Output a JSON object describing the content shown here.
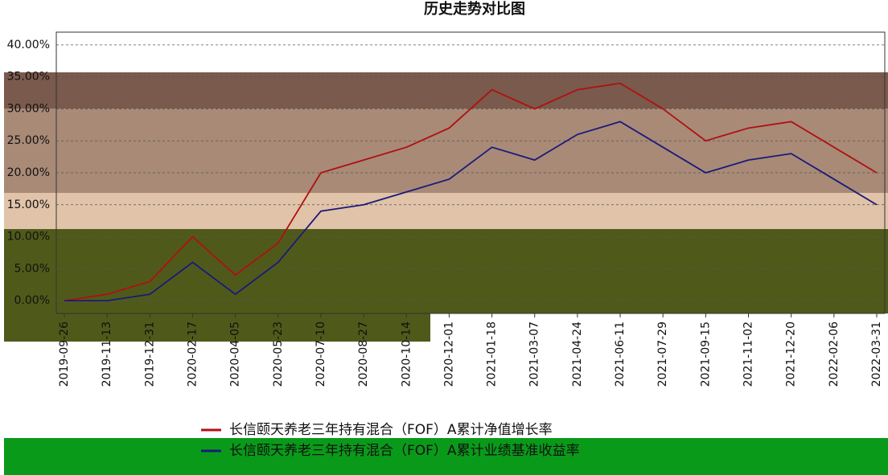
{
  "chart_data": {
    "type": "line",
    "title": "历史走势对比图",
    "categories": [
      "2019-09-26",
      "2019-11-13",
      "2019-12-31",
      "2020-02-17",
      "2020-04-05",
      "2020-05-23",
      "2020-07-10",
      "2020-08-27",
      "2020-10-14",
      "2020-12-01",
      "2021-01-18",
      "2021-03-07",
      "2021-04-24",
      "2021-06-11",
      "2021-07-29",
      "2021-09-15",
      "2021-11-02",
      "2021-12-20",
      "2022-02-06",
      "2022-03-31"
    ],
    "series": [
      {
        "name": "长信颐天养老三年持有混合（FOF）A累计净值增长率",
        "color": "#b01010",
        "values": [
          0,
          1,
          3,
          10,
          4,
          9,
          20,
          22,
          24,
          27,
          33,
          30,
          33,
          34,
          30,
          25,
          27,
          28,
          24,
          20
        ]
      },
      {
        "name": "长信颐天养老三年持有混合（FOF）A累计业绩基准收益率",
        "color": "#1a1a7a",
        "values": [
          0,
          0,
          1,
          6,
          1,
          6,
          14,
          15,
          17,
          19,
          24,
          22,
          26,
          28,
          24,
          20,
          22,
          23,
          19,
          15
        ]
      }
    ],
    "ylim": [
      -2,
      42
    ],
    "yticks": [
      {
        "value": 0,
        "label": "0.00%"
      },
      {
        "value": 5,
        "label": "5.00%"
      },
      {
        "value": 10,
        "label": "10.00%"
      },
      {
        "value": 15,
        "label": "15.00%"
      },
      {
        "value": 20,
        "label": "20.00%"
      },
      {
        "value": 25,
        "label": "25.00%"
      },
      {
        "value": 30,
        "label": "30.00%"
      },
      {
        "value": 35,
        "label": "35.00%"
      },
      {
        "value": 40,
        "label": "40.00%"
      }
    ],
    "grid": true
  }
}
